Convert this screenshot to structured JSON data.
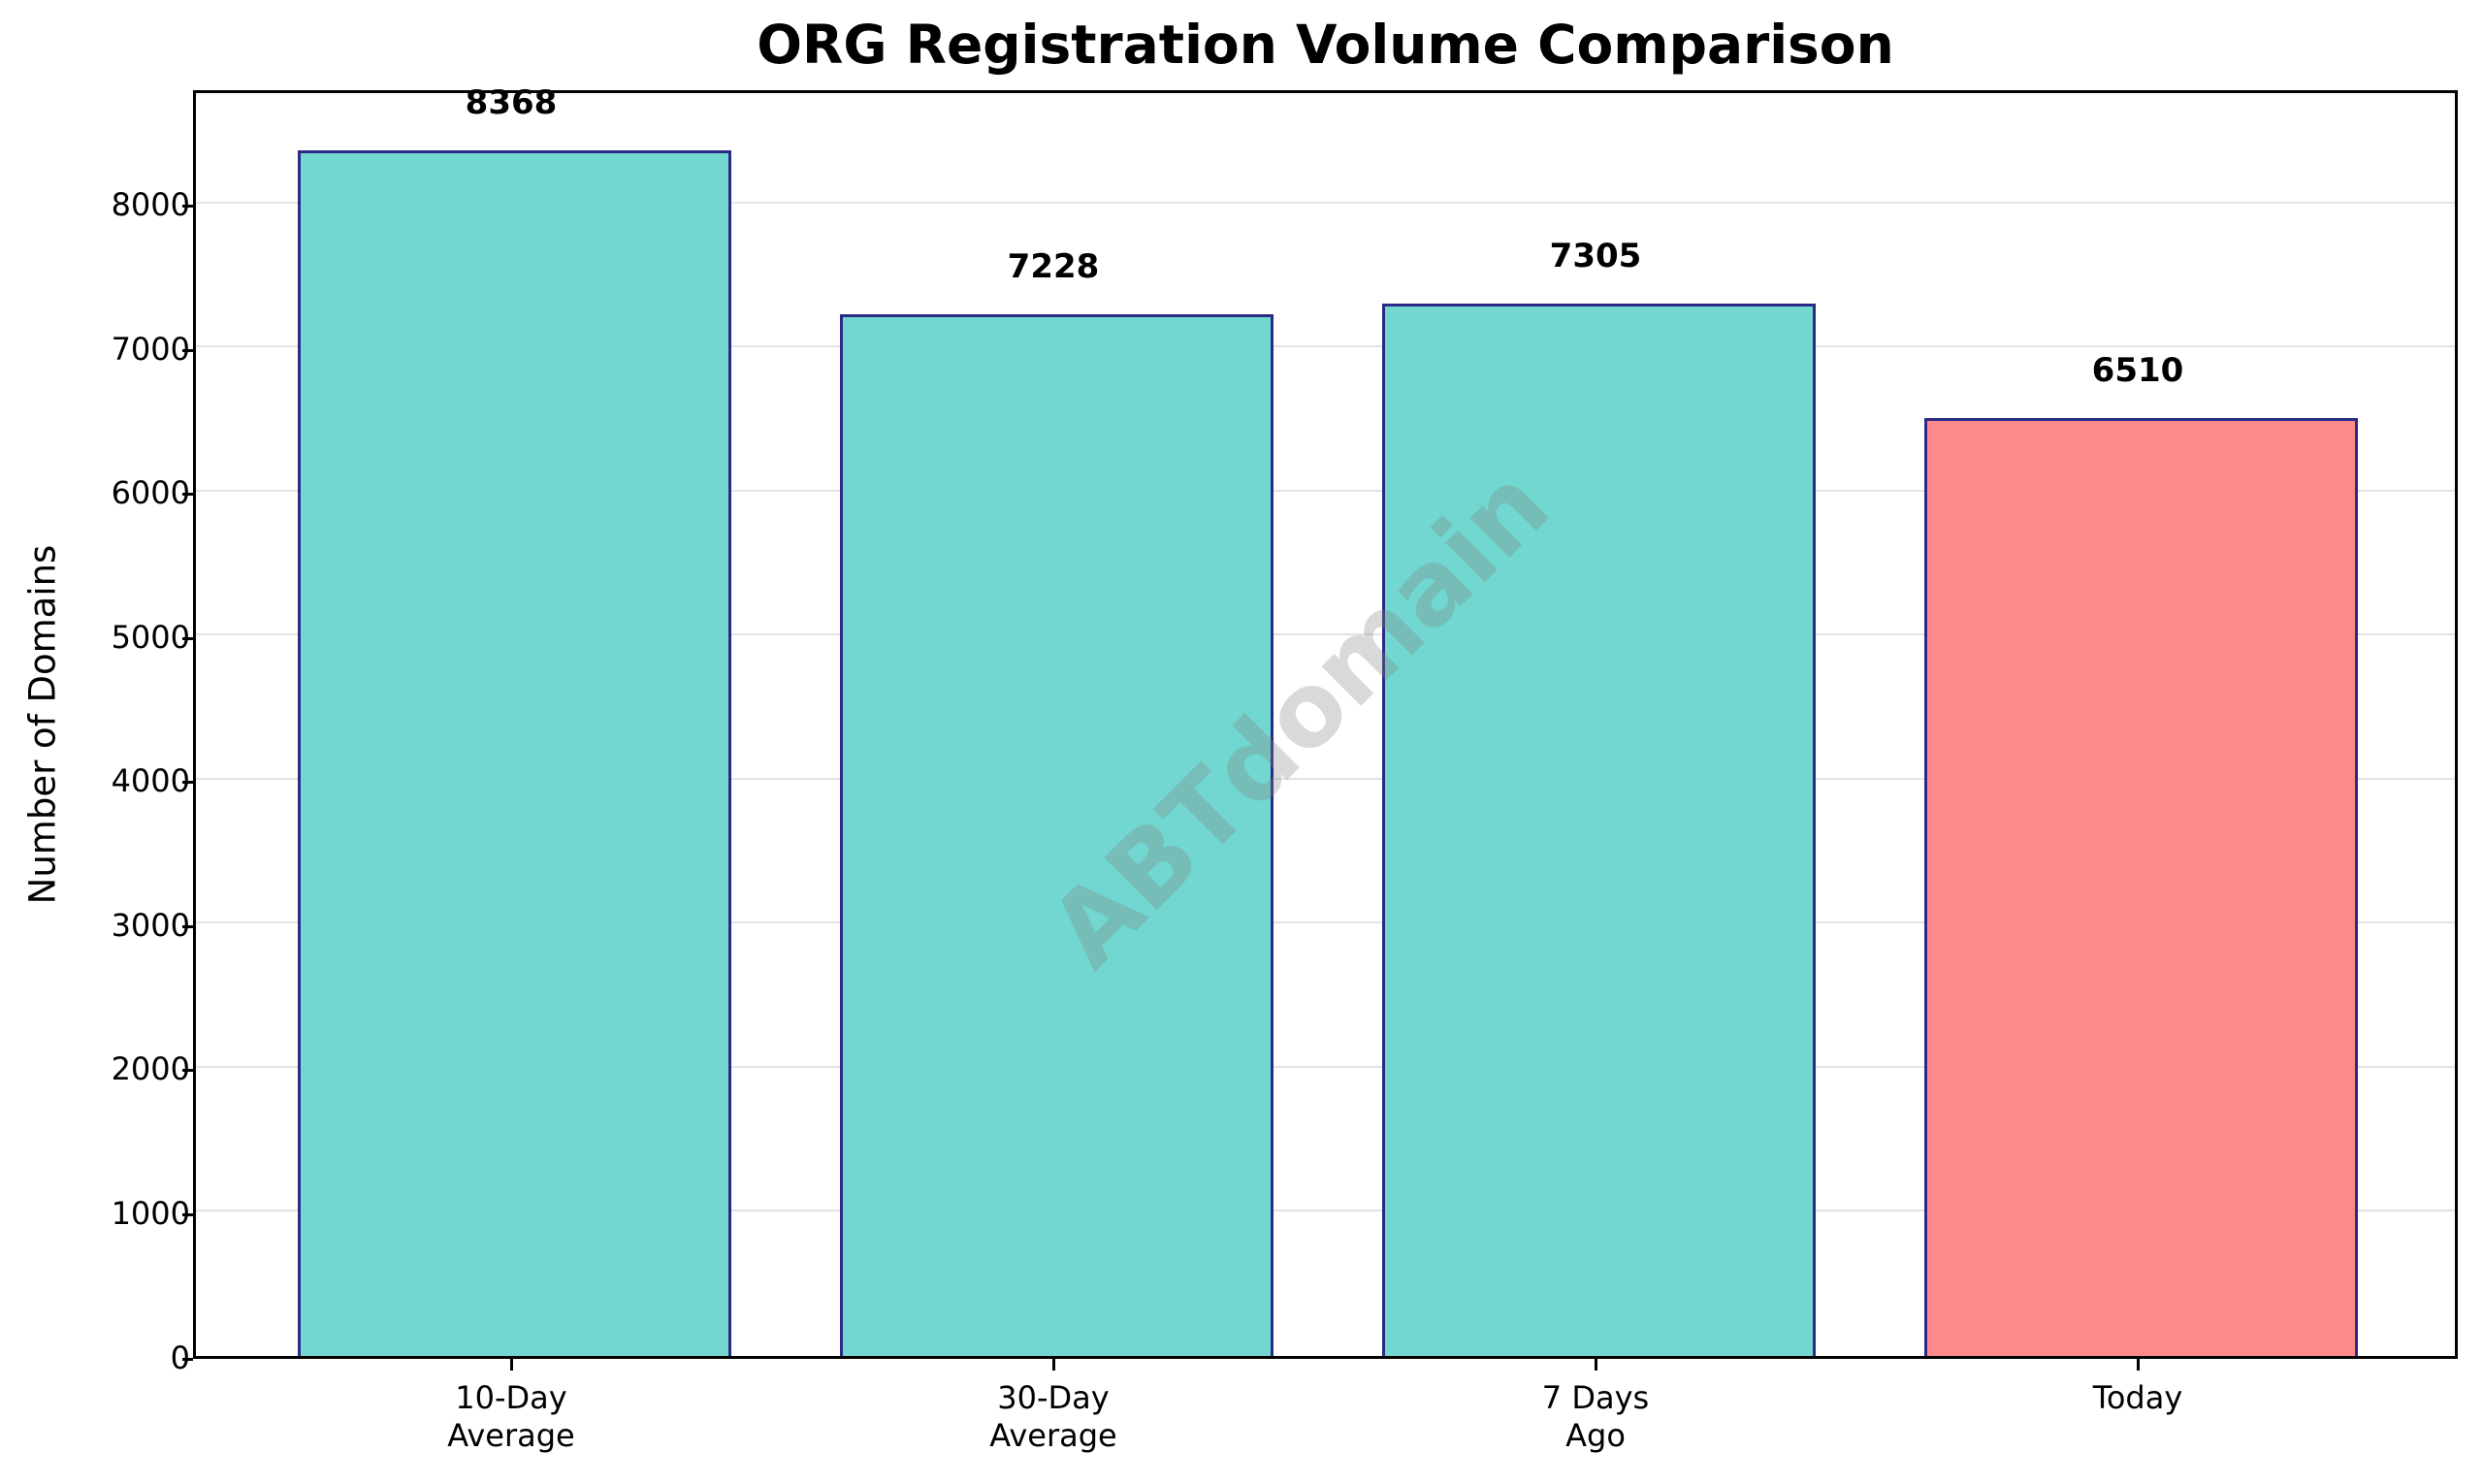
{
  "chart_data": {
    "type": "bar",
    "title": "ORG Registration Volume Comparison",
    "xlabel": "",
    "ylabel": "Number of Domains",
    "categories": [
      "10-Day\nAverage",
      "30-Day\nAverage",
      "7 Days\nAgo",
      "Today"
    ],
    "category_lines": [
      [
        "10-Day",
        "Average"
      ],
      [
        "30-Day",
        "Average"
      ],
      [
        "7 Days",
        "Ago"
      ],
      [
        "Today"
      ]
    ],
    "values": [
      8368,
      7228,
      7305,
      6510
    ],
    "value_labels": [
      "8368",
      "7228",
      "7305",
      "6510"
    ],
    "colors": [
      "#71D7D0",
      "#71D7D0",
      "#71D7D0",
      "#FF8A8A"
    ],
    "edge_color": "#2B2B86",
    "ylim": [
      0,
      8786
    ],
    "yticks": [
      0,
      1000,
      2000,
      3000,
      4000,
      5000,
      6000,
      7000,
      8000
    ],
    "grid": true,
    "grid_axis": "y",
    "legend": null,
    "watermark": "ABTdomain"
  }
}
